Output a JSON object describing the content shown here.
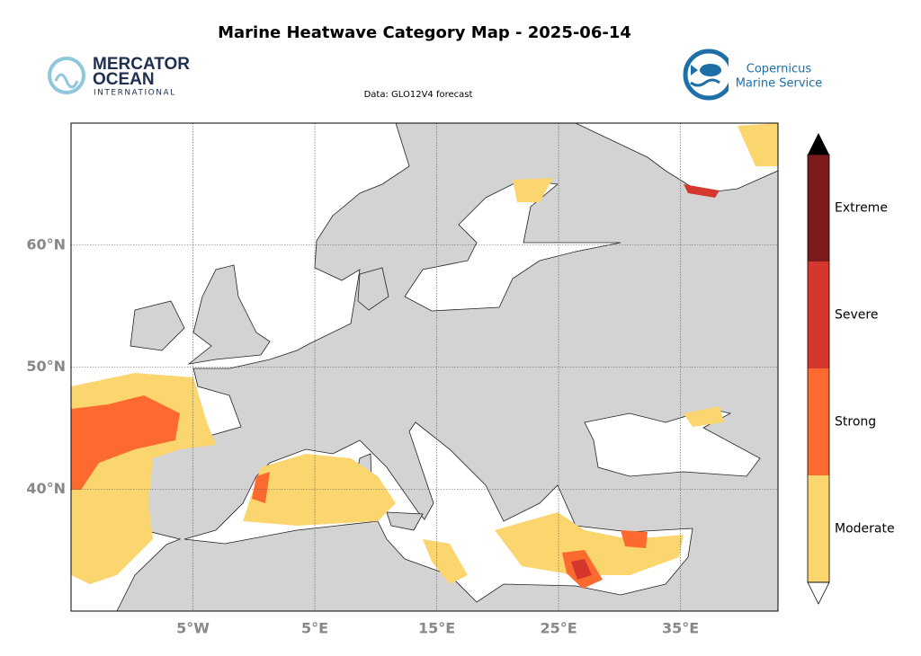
{
  "header": {
    "title": "Marine Heatwave Category Map - 2025-06-14",
    "subtitle": "Data: GLO12V4 forecast"
  },
  "logos": {
    "left": [
      "MERCATOR",
      "OCEAN",
      "INTERNATIONAL"
    ],
    "right": [
      "Copernicus",
      "Marine Service"
    ]
  },
  "map": {
    "lonlim": [
      -15,
      43
    ],
    "latlim": [
      30,
      70
    ],
    "lonticks": [
      {
        "value": -5,
        "label": "5°W"
      },
      {
        "value": 5,
        "label": "5°E"
      },
      {
        "value": 15,
        "label": "15°E"
      },
      {
        "value": 25,
        "label": "25°E"
      },
      {
        "value": 35,
        "label": "35°E"
      }
    ],
    "latticks": [
      {
        "value": 40,
        "label": "40°N"
      },
      {
        "value": 50,
        "label": "50°N"
      },
      {
        "value": 60,
        "label": "60°N"
      }
    ],
    "grid": true
  },
  "colorbar": {
    "categories": [
      {
        "name": "Moderate",
        "color": "#fbd56e"
      },
      {
        "name": "Strong",
        "color": "#fc6a2f"
      },
      {
        "name": "Severe",
        "color": "#d5372e"
      },
      {
        "name": "Extreme",
        "color": "#7d1a1e"
      }
    ]
  }
}
